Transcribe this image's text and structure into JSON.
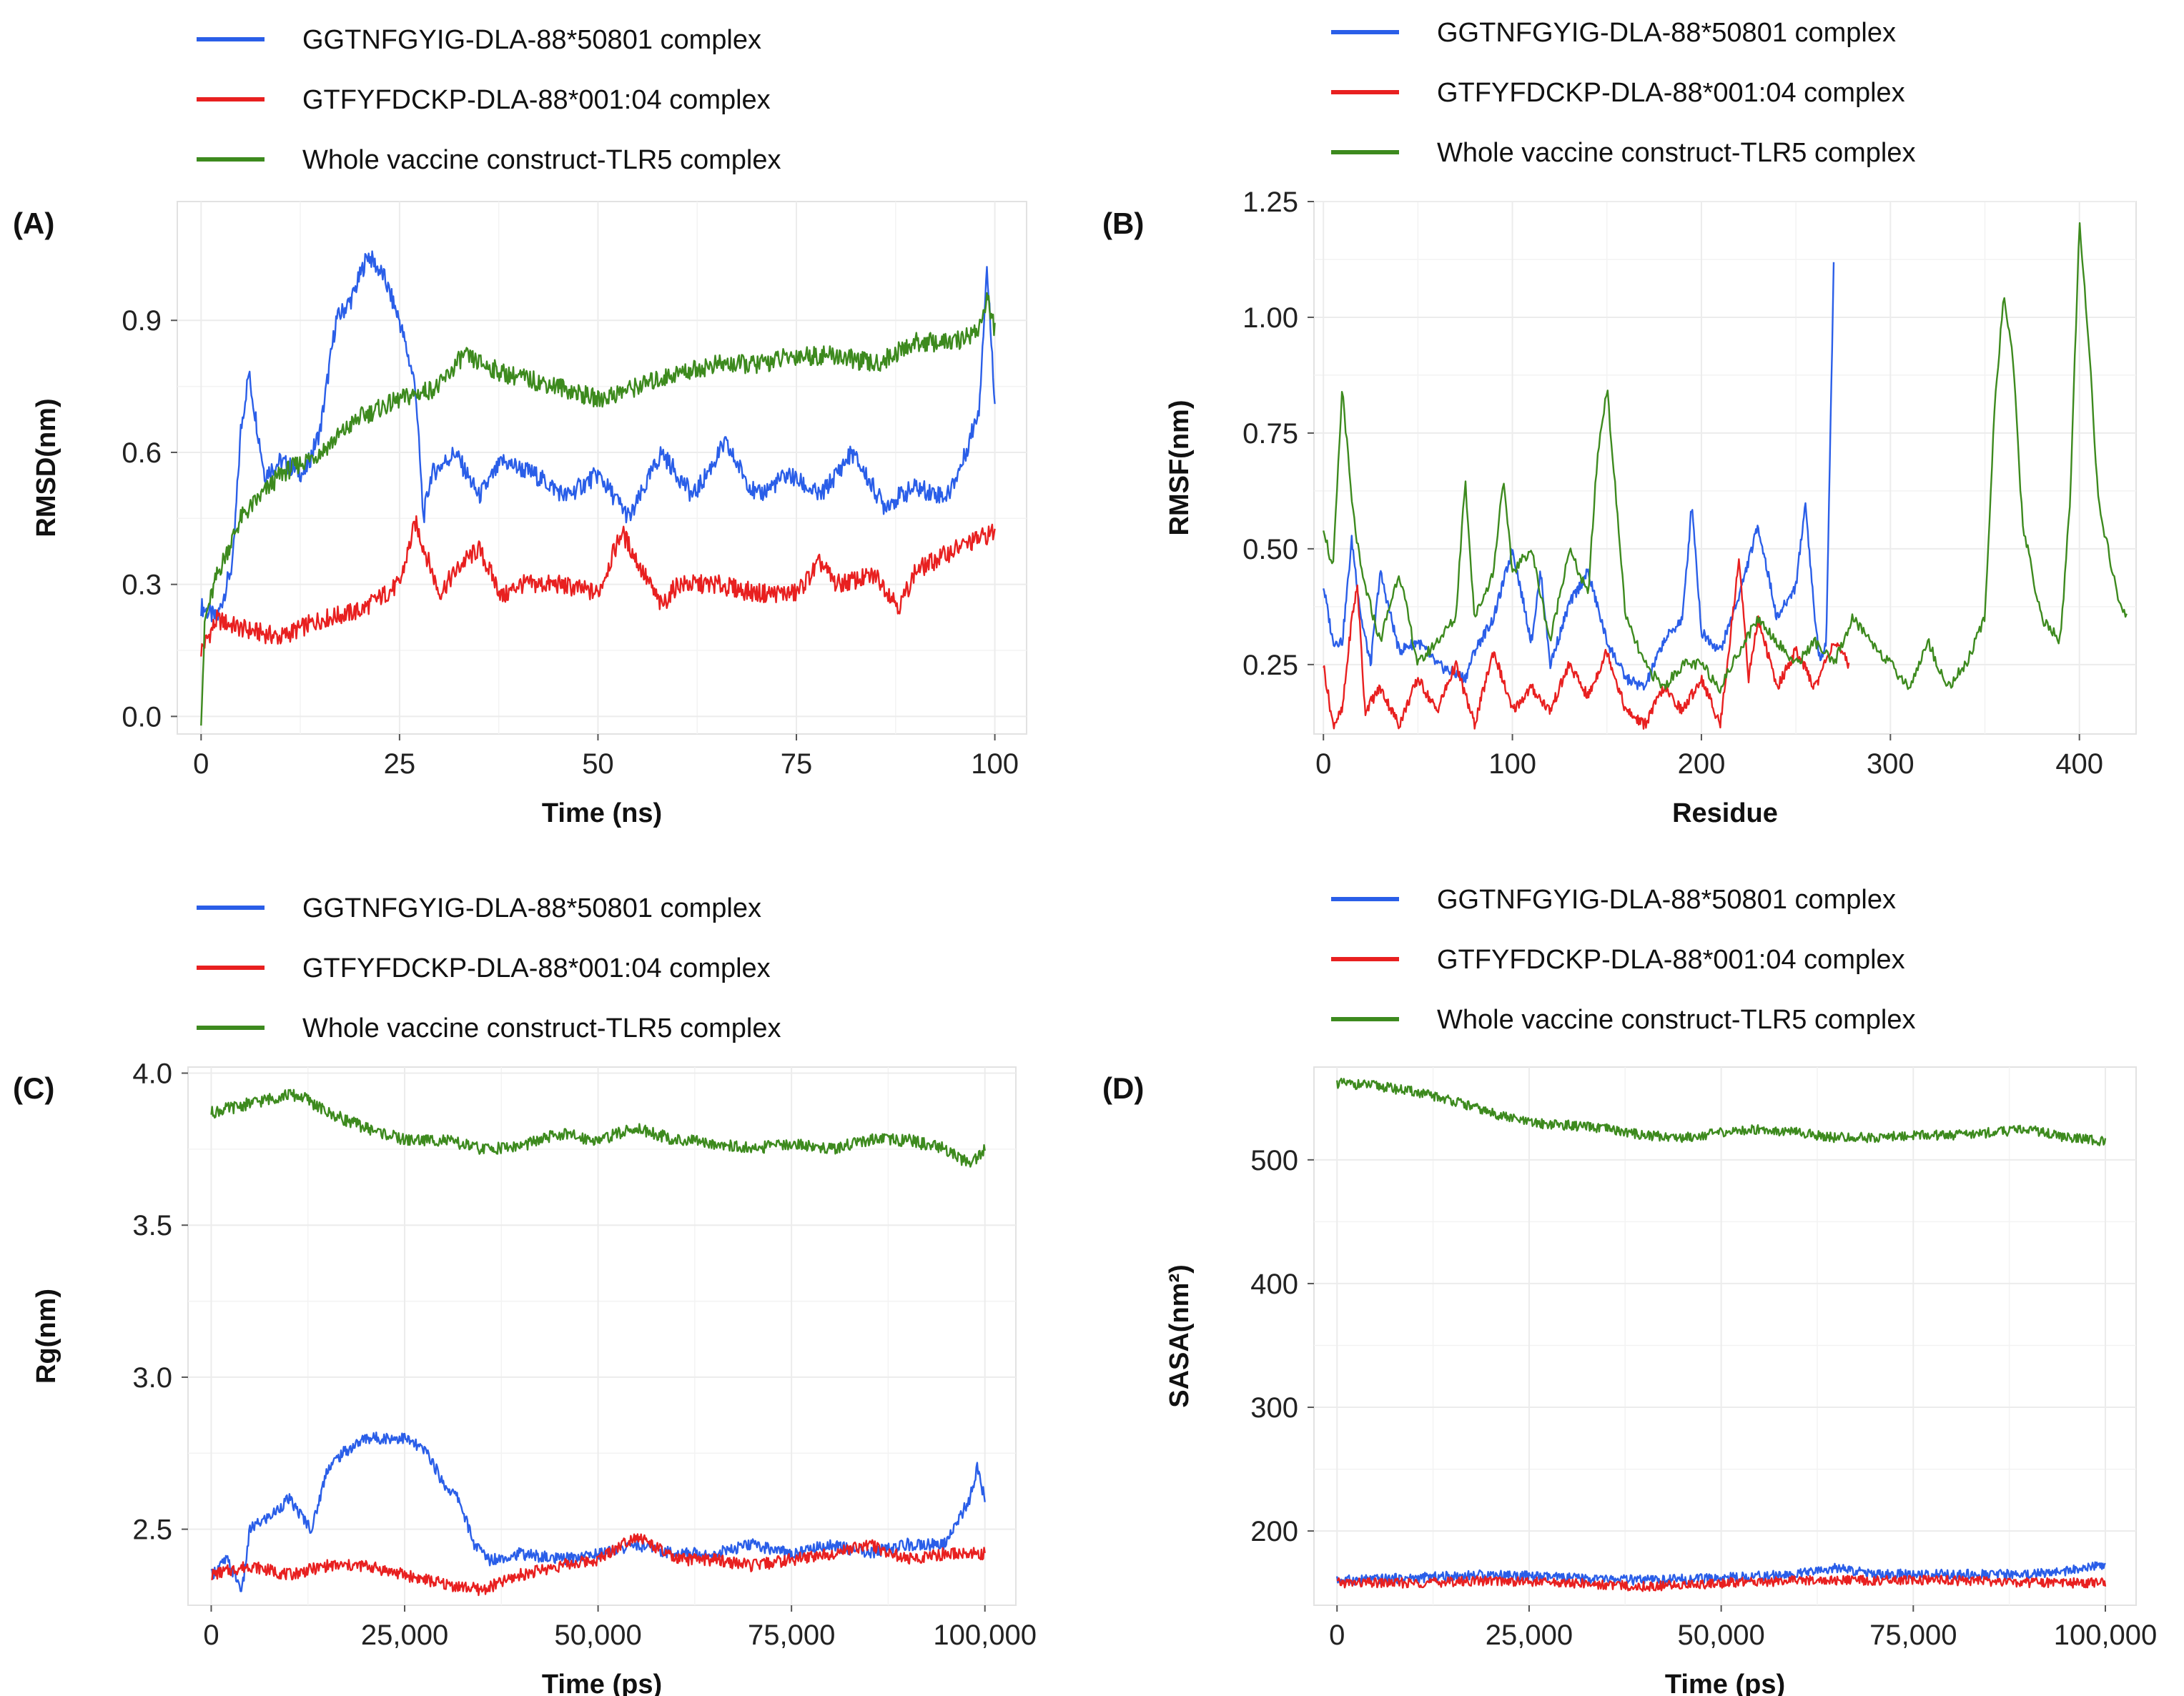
{
  "legend_entries": [
    {
      "name": "GGTNFGYIG-DLA-88*50801 complex",
      "color": "#2a5ee8"
    },
    {
      "name": "GTFYFDCKP-DLA-88*001:04 complex",
      "color": "#e82020"
    },
    {
      "name": "Whole vaccine construct-TLR5 complex",
      "color": "#3d8a1e"
    }
  ],
  "chart_data": [
    {
      "panel": "(A)",
      "type": "line",
      "xlabel": "Time (ns)",
      "ylabel": "RMSD(nm)",
      "xlim": [
        -3,
        104
      ],
      "ylim": [
        -0.04,
        1.17
      ],
      "xticks": [
        0,
        25,
        50,
        75,
        100
      ],
      "xtick_labels": [
        "0",
        "25",
        "50",
        "75",
        "100"
      ],
      "yticks": [
        0.0,
        0.3,
        0.6,
        0.9
      ],
      "ytick_labels": [
        "0.0",
        "0.3",
        "0.6",
        "0.9"
      ],
      "series": [
        {
          "name": "GGTNFGYIG-DLA-88*50801 complex",
          "color": "#2a5ee8",
          "x": [
            0,
            2,
            4,
            5,
            6,
            8,
            10,
            13,
            15,
            17,
            19,
            21,
            23,
            25,
            27,
            28,
            29,
            32,
            35,
            38,
            42,
            46,
            50,
            54,
            58,
            62,
            66,
            70,
            74,
            78,
            82,
            86,
            90,
            94,
            96,
            98,
            99,
            100
          ],
          "y": [
            0.25,
            0.22,
            0.35,
            0.65,
            0.78,
            0.55,
            0.58,
            0.55,
            0.65,
            0.9,
            0.95,
            1.05,
            1.0,
            0.9,
            0.75,
            0.45,
            0.55,
            0.6,
            0.5,
            0.58,
            0.55,
            0.5,
            0.55,
            0.45,
            0.6,
            0.5,
            0.62,
            0.5,
            0.55,
            0.5,
            0.6,
            0.48,
            0.52,
            0.5,
            0.58,
            0.7,
            1.02,
            0.72
          ]
        },
        {
          "name": "GTFYFDCKP-DLA-88*001:04 complex",
          "color": "#e82020",
          "x": [
            0,
            2,
            5,
            10,
            15,
            20,
            25,
            27,
            30,
            33,
            35,
            38,
            40,
            45,
            50,
            53,
            55,
            58,
            60,
            65,
            70,
            75,
            78,
            80,
            85,
            88,
            90,
            95,
            100
          ],
          "y": [
            0.15,
            0.22,
            0.2,
            0.18,
            0.22,
            0.24,
            0.3,
            0.44,
            0.28,
            0.35,
            0.38,
            0.27,
            0.3,
            0.3,
            0.28,
            0.42,
            0.35,
            0.25,
            0.3,
            0.3,
            0.28,
            0.28,
            0.35,
            0.3,
            0.32,
            0.25,
            0.33,
            0.38,
            0.42
          ]
        },
        {
          "name": "Whole vaccine construct-TLR5 complex",
          "color": "#3d8a1e",
          "x": [
            0,
            0.5,
            2,
            5,
            10,
            15,
            20,
            25,
            30,
            33,
            38,
            45,
            50,
            55,
            60,
            65,
            70,
            75,
            80,
            85,
            90,
            95,
            98,
            99,
            100
          ],
          "y": [
            0.0,
            0.22,
            0.32,
            0.45,
            0.55,
            0.6,
            0.68,
            0.72,
            0.75,
            0.82,
            0.78,
            0.75,
            0.72,
            0.75,
            0.78,
            0.8,
            0.8,
            0.82,
            0.82,
            0.8,
            0.85,
            0.85,
            0.88,
            0.95,
            0.88
          ]
        }
      ]
    },
    {
      "panel": "(B)",
      "type": "line",
      "xlabel": "Residue",
      "ylabel": "RMSF(nm)",
      "xlim": [
        -5,
        430
      ],
      "ylim": [
        0.1,
        1.25
      ],
      "xticks": [
        0,
        100,
        200,
        300,
        400
      ],
      "xtick_labels": [
        "0",
        "100",
        "200",
        "300",
        "400"
      ],
      "yticks": [
        0.25,
        0.5,
        0.75,
        1.0,
        1.25
      ],
      "ytick_labels": [
        "0.25",
        "0.50",
        "0.75",
        "1.00",
        "1.25"
      ],
      "series": [
        {
          "name": "GGTNFGYIG-DLA-88*50801 complex",
          "color": "#2a5ee8",
          "x": [
            0,
            5,
            10,
            15,
            20,
            25,
            30,
            40,
            50,
            60,
            75,
            80,
            90,
            100,
            110,
            115,
            120,
            130,
            140,
            150,
            160,
            170,
            180,
            190,
            195,
            200,
            210,
            220,
            230,
            240,
            250,
            255,
            260,
            263,
            266,
            269,
            270
          ],
          "y": [
            0.42,
            0.3,
            0.3,
            0.52,
            0.35,
            0.25,
            0.45,
            0.28,
            0.3,
            0.25,
            0.22,
            0.28,
            0.35,
            0.5,
            0.3,
            0.45,
            0.25,
            0.38,
            0.45,
            0.3,
            0.22,
            0.2,
            0.3,
            0.35,
            0.6,
            0.32,
            0.28,
            0.4,
            0.55,
            0.35,
            0.42,
            0.6,
            0.35,
            0.25,
            0.3,
            0.9,
            1.12
          ]
        },
        {
          "name": "GTFYFDCKP-DLA-88*001:04 complex",
          "color": "#e82020",
          "x": [
            0,
            5,
            10,
            15,
            18,
            22,
            30,
            40,
            50,
            60,
            70,
            80,
            90,
            100,
            110,
            120,
            130,
            140,
            150,
            160,
            170,
            180,
            190,
            200,
            210,
            215,
            220,
            225,
            230,
            240,
            250,
            260,
            270,
            278
          ],
          "y": [
            0.25,
            0.12,
            0.15,
            0.35,
            0.42,
            0.15,
            0.2,
            0.12,
            0.22,
            0.15,
            0.25,
            0.12,
            0.28,
            0.15,
            0.2,
            0.15,
            0.25,
            0.18,
            0.28,
            0.15,
            0.12,
            0.2,
            0.15,
            0.22,
            0.12,
            0.3,
            0.48,
            0.22,
            0.35,
            0.2,
            0.28,
            0.2,
            0.3,
            0.25
          ]
        },
        {
          "name": "Whole vaccine construct-TLR5 complex",
          "color": "#3d8a1e",
          "x": [
            0,
            5,
            10,
            15,
            20,
            30,
            40,
            50,
            60,
            70,
            75,
            80,
            90,
            95,
            100,
            110,
            120,
            130,
            140,
            145,
            150,
            155,
            160,
            170,
            180,
            190,
            200,
            210,
            220,
            230,
            240,
            250,
            260,
            270,
            280,
            290,
            300,
            310,
            320,
            330,
            340,
            350,
            355,
            360,
            365,
            370,
            380,
            390,
            395,
            400,
            405,
            410,
            415,
            420,
            425
          ],
          "y": [
            0.55,
            0.45,
            0.85,
            0.6,
            0.45,
            0.3,
            0.45,
            0.25,
            0.3,
            0.35,
            0.65,
            0.35,
            0.45,
            0.65,
            0.45,
            0.5,
            0.3,
            0.5,
            0.4,
            0.7,
            0.85,
            0.6,
            0.35,
            0.25,
            0.2,
            0.25,
            0.25,
            0.2,
            0.28,
            0.35,
            0.3,
            0.25,
            0.3,
            0.25,
            0.35,
            0.3,
            0.25,
            0.2,
            0.3,
            0.2,
            0.25,
            0.35,
            0.8,
            1.05,
            0.9,
            0.55,
            0.35,
            0.3,
            0.6,
            1.2,
            0.95,
            0.6,
            0.5,
            0.4,
            0.35
          ]
        }
      ]
    },
    {
      "panel": "(C)",
      "type": "line",
      "xlabel": "Time (ps)",
      "ylabel": "Rg(nm)",
      "xlim": [
        -3000,
        104000
      ],
      "ylim": [
        2.25,
        4.02
      ],
      "xticks": [
        0,
        25000,
        50000,
        75000,
        100000
      ],
      "xtick_labels": [
        "0",
        "25,000",
        "50,000",
        "75,000",
        "100,000"
      ],
      "yticks": [
        2.5,
        3.0,
        3.5,
        4.0
      ],
      "ytick_labels": [
        "2.5",
        "3.0",
        "3.5",
        "4.0"
      ],
      "series": [
        {
          "name": "GGTNFGYIG-DLA-88*50801 complex",
          "color": "#2a5ee8",
          "x": [
            0,
            2000,
            4000,
            5000,
            8000,
            10000,
            13000,
            15000,
            17000,
            20000,
            23000,
            25000,
            28000,
            30000,
            32000,
            34000,
            36000,
            40000,
            45000,
            50000,
            55000,
            60000,
            65000,
            70000,
            75000,
            80000,
            85000,
            90000,
            95000,
            98000,
            99000,
            100000
          ],
          "y": [
            2.35,
            2.4,
            2.3,
            2.5,
            2.55,
            2.6,
            2.5,
            2.7,
            2.75,
            2.8,
            2.8,
            2.8,
            2.75,
            2.65,
            2.6,
            2.45,
            2.4,
            2.42,
            2.4,
            2.42,
            2.45,
            2.42,
            2.42,
            2.45,
            2.42,
            2.45,
            2.42,
            2.45,
            2.45,
            2.6,
            2.7,
            2.6
          ]
        },
        {
          "name": "GTFYFDCKP-DLA-88*001:04 complex",
          "color": "#e82020",
          "x": [
            0,
            5000,
            10000,
            15000,
            20000,
            25000,
            30000,
            35000,
            40000,
            45000,
            50000,
            53000,
            55000,
            60000,
            65000,
            70000,
            75000,
            80000,
            85000,
            90000,
            95000,
            100000
          ],
          "y": [
            2.35,
            2.38,
            2.35,
            2.38,
            2.38,
            2.35,
            2.32,
            2.3,
            2.35,
            2.38,
            2.4,
            2.45,
            2.48,
            2.4,
            2.4,
            2.38,
            2.4,
            2.42,
            2.45,
            2.4,
            2.42,
            2.42
          ]
        },
        {
          "name": "Whole vaccine construct-TLR5 complex",
          "color": "#3d8a1e",
          "x": [
            0,
            5000,
            10000,
            12000,
            15000,
            20000,
            25000,
            30000,
            35000,
            40000,
            45000,
            50000,
            55000,
            60000,
            65000,
            70000,
            75000,
            80000,
            85000,
            90000,
            95000,
            98000,
            100000
          ],
          "y": [
            3.87,
            3.9,
            3.93,
            3.92,
            3.87,
            3.82,
            3.78,
            3.78,
            3.75,
            3.76,
            3.8,
            3.78,
            3.82,
            3.78,
            3.77,
            3.75,
            3.77,
            3.75,
            3.78,
            3.78,
            3.75,
            3.7,
            3.75
          ]
        }
      ]
    },
    {
      "panel": "(D)",
      "type": "line",
      "xlabel": "Time (ps)",
      "ylabel": "SASA(nm²)",
      "xlim": [
        -3000,
        104000
      ],
      "ylim": [
        140,
        575
      ],
      "xticks": [
        0,
        25000,
        50000,
        75000,
        100000
      ],
      "xtick_labels": [
        "0",
        "25,000",
        "50,000",
        "75,000",
        "100,000"
      ],
      "yticks": [
        200,
        300,
        400,
        500
      ],
      "ytick_labels": [
        "200",
        "300",
        "400",
        "500"
      ],
      "series": [
        {
          "name": "GGTNFGYIG-DLA-88*50801 complex",
          "color": "#2a5ee8",
          "x": [
            0,
            10000,
            20000,
            30000,
            40000,
            50000,
            60000,
            65000,
            70000,
            80000,
            90000,
            95000,
            100000
          ],
          "y": [
            160,
            162,
            165,
            162,
            160,
            162,
            165,
            170,
            165,
            165,
            165,
            168,
            172
          ]
        },
        {
          "name": "GTFYFDCKP-DLA-88*001:04 complex",
          "color": "#e82020",
          "x": [
            0,
            10000,
            20000,
            30000,
            40000,
            50000,
            60000,
            70000,
            80000,
            90000,
            100000
          ],
          "y": [
            158,
            158,
            160,
            158,
            155,
            158,
            160,
            160,
            160,
            158,
            158
          ]
        },
        {
          "name": "Whole vaccine construct-TLR5 complex",
          "color": "#3d8a1e",
          "x": [
            0,
            5000,
            10000,
            15000,
            20000,
            25000,
            30000,
            35000,
            40000,
            45000,
            50000,
            55000,
            60000,
            65000,
            70000,
            75000,
            80000,
            85000,
            90000,
            95000,
            100000
          ],
          "y": [
            562,
            560,
            555,
            548,
            538,
            530,
            528,
            525,
            520,
            518,
            522,
            525,
            522,
            518,
            518,
            520,
            520,
            522,
            525,
            518,
            515
          ]
        }
      ]
    }
  ]
}
